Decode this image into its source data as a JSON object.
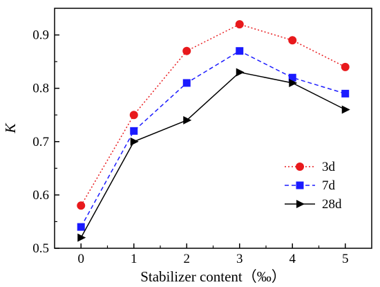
{
  "chart_data": {
    "type": "line",
    "xlabel": "Stabilizer content（‰）",
    "ylabel": "K",
    "x": [
      0,
      1,
      2,
      3,
      4,
      5
    ],
    "xlim": [
      -0.5,
      5.5
    ],
    "ylim": [
      0.5,
      0.95
    ],
    "x_ticks": [
      "0",
      "1",
      "2",
      "3",
      "4",
      "5"
    ],
    "y_ticks": [
      "0.5",
      "0.6",
      "0.7",
      "0.8",
      "0.9"
    ],
    "y_tick_values": [
      0.5,
      0.6,
      0.7,
      0.8,
      0.9
    ],
    "grid": false,
    "legend_position": "lower-right",
    "series": [
      {
        "name": "3d",
        "values": [
          0.58,
          0.75,
          0.87,
          0.92,
          0.89,
          0.84
        ],
        "color": "#e8191c",
        "line_style": "dotted",
        "marker": "circle"
      },
      {
        "name": "7d",
        "values": [
          0.54,
          0.72,
          0.81,
          0.87,
          0.82,
          0.79
        ],
        "color": "#1a1aff",
        "line_style": "dashed",
        "marker": "square"
      },
      {
        "name": "28d",
        "values": [
          0.52,
          0.7,
          0.74,
          0.83,
          0.81,
          0.76
        ],
        "color": "#000000",
        "line_style": "solid",
        "marker": "triangle-right"
      }
    ]
  }
}
